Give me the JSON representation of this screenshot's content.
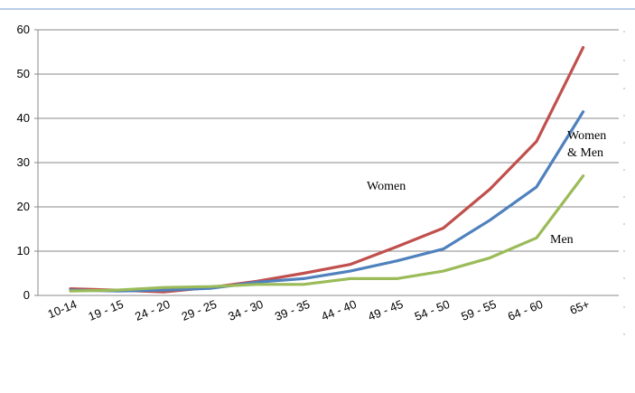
{
  "chart_data": {
    "type": "line",
    "categories": [
      "10-14",
      "19 - 15",
      "24 - 20",
      "29 - 25",
      "34 - 30",
      "39 - 35",
      "44 - 40",
      "49 - 45",
      "54 - 50",
      "59 - 55",
      "64 - 60",
      "65+"
    ],
    "series": [
      {
        "key": "women",
        "color": "#c0504d",
        "values": [
          1.5,
          1.2,
          0.8,
          1.8,
          3.2,
          5.0,
          7.0,
          11.0,
          15.2,
          24.0,
          34.8,
          56.0
        ]
      },
      {
        "key": "both",
        "color": "#4f81bd",
        "values": [
          1.2,
          1.0,
          1.2,
          1.6,
          3.0,
          3.8,
          5.5,
          7.8,
          10.5,
          17.0,
          24.5,
          41.5
        ]
      },
      {
        "key": "men",
        "color": "#9bbb59",
        "values": [
          1.0,
          1.2,
          1.8,
          2.0,
          2.5,
          2.5,
          3.8,
          3.8,
          5.5,
          8.5,
          13.0,
          27.0
        ]
      }
    ],
    "y_ticks": [
      0,
      10,
      20,
      30,
      40,
      50,
      60
    ],
    "ylim": [
      0,
      60
    ],
    "grid": true,
    "annotations": {
      "women": "Women",
      "both_line1": "Women",
      "both_line2": "& Men",
      "men": "Men"
    }
  }
}
